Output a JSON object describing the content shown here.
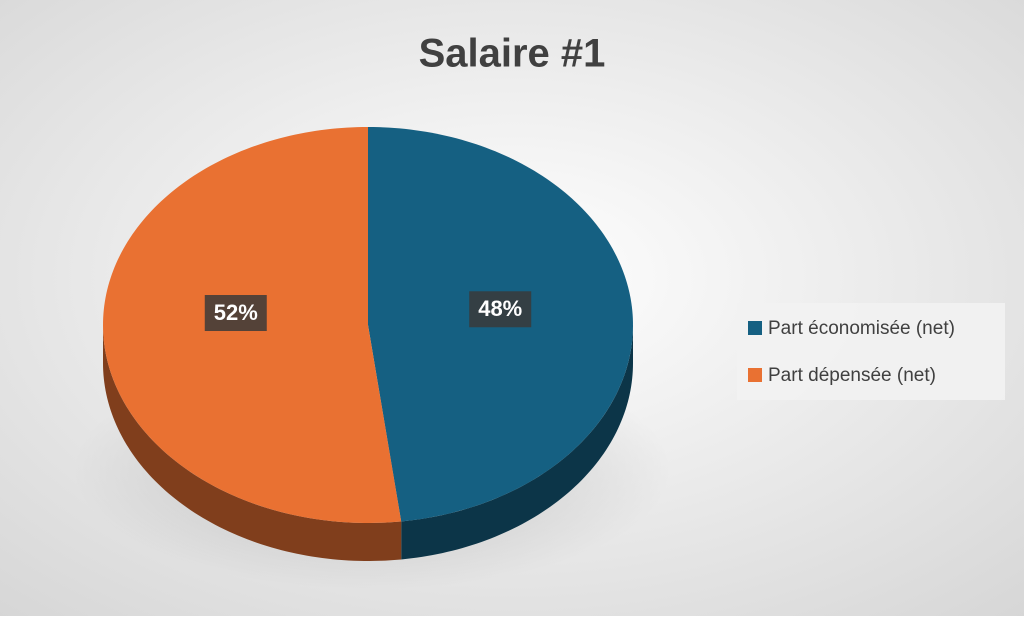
{
  "chart_data": {
    "type": "pie",
    "title": "Salaire #1",
    "categories": [
      "Part économisée (net)",
      "Part dépensée (net)"
    ],
    "values": [
      48,
      52
    ],
    "value_labels": [
      "48%",
      "52%"
    ],
    "colors": [
      "#156082",
      "#e97132"
    ],
    "legend": "right"
  }
}
